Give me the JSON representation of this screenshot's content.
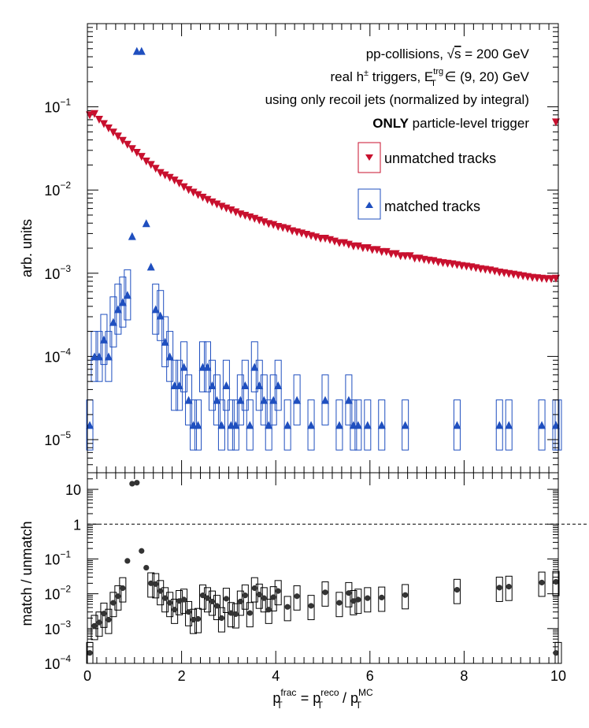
{
  "chart_data": [
    {
      "type": "scatter",
      "ylabel": "arb. units",
      "yscale": "log",
      "xlim": [
        0,
        10
      ],
      "ylim": [
        4e-06,
        1.0
      ],
      "y_ticks": [
        {
          "v": 1e-05,
          "base": "10",
          "exp": "−5"
        },
        {
          "v": 0.0001,
          "base": "10",
          "exp": "−4"
        },
        {
          "v": 0.001,
          "base": "10",
          "exp": "−3"
        },
        {
          "v": 0.01,
          "base": "10",
          "exp": "−2"
        },
        {
          "v": 0.1,
          "base": "10",
          "exp": "−1"
        }
      ],
      "annotations": {
        "line1": "pp-collisions,",
        "line1_b": " = 200 GeV",
        "sqrt_s": "s",
        "line2_a": "real h",
        "line2_sup": "±",
        "line2_b": " triggers, E",
        "line2_trg": "trg",
        "line2_T": "T",
        "line2_c": " ∈ (9, 20) GeV",
        "line3": "using only recoil jets (normalized by integral)",
        "line4_bold": "ONLY",
        "line4": " particle-level trigger"
      },
      "series": [
        {
          "name": "unmatched tracks",
          "color": "#c8102e",
          "marker": "triangle-down",
          "x": [
            0.05,
            0.15,
            0.25,
            0.35,
            0.45,
            0.55,
            0.65,
            0.75,
            0.85,
            0.95,
            1.05,
            1.15,
            1.25,
            1.35,
            1.45,
            1.55,
            1.65,
            1.75,
            1.85,
            1.95,
            2.05,
            2.15,
            2.25,
            2.35,
            2.45,
            2.55,
            2.65,
            2.75,
            2.85,
            2.95,
            3.05,
            3.15,
            3.25,
            3.35,
            3.45,
            3.55,
            3.65,
            3.75,
            3.85,
            3.95,
            4.05,
            4.15,
            4.25,
            4.35,
            4.45,
            4.55,
            4.65,
            4.75,
            4.85,
            4.95,
            5.05,
            5.15,
            5.25,
            5.35,
            5.45,
            5.55,
            5.65,
            5.75,
            5.85,
            5.95,
            6.05,
            6.15,
            6.25,
            6.35,
            6.45,
            6.55,
            6.65,
            6.75,
            6.85,
            6.95,
            7.05,
            7.15,
            7.25,
            7.35,
            7.45,
            7.55,
            7.65,
            7.75,
            7.85,
            7.95,
            8.05,
            8.15,
            8.25,
            8.35,
            8.45,
            8.55,
            8.65,
            8.75,
            8.85,
            8.95,
            9.05,
            9.15,
            9.25,
            9.35,
            9.45,
            9.55,
            9.65,
            9.75,
            9.85,
            9.95
          ],
          "values": [
            0.079,
            0.082,
            0.07,
            0.062,
            0.055,
            0.049,
            0.044,
            0.039,
            0.035,
            0.031,
            0.028,
            0.025,
            0.022,
            0.02,
            0.018,
            0.016,
            0.015,
            0.014,
            0.013,
            0.012,
            0.0108,
            0.01,
            0.0093,
            0.0087,
            0.0081,
            0.0076,
            0.0071,
            0.0067,
            0.0063,
            0.006,
            0.0057,
            0.0054,
            0.0051,
            0.0049,
            0.0047,
            0.0045,
            0.0043,
            0.0041,
            0.0039,
            0.0038,
            0.0036,
            0.0035,
            0.0034,
            0.0032,
            0.0031,
            0.003,
            0.0029,
            0.0028,
            0.0027,
            0.0026,
            0.0026,
            0.0025,
            0.0024,
            0.0023,
            0.0023,
            0.0022,
            0.0021,
            0.0021,
            0.002,
            0.002,
            0.0019,
            0.0019,
            0.0018,
            0.0018,
            0.0017,
            0.0017,
            0.0016,
            0.0016,
            0.0016,
            0.0015,
            0.0015,
            0.00145,
            0.00142,
            0.0014,
            0.00135,
            0.00132,
            0.0013,
            0.00128,
            0.00125,
            0.00122,
            0.0012,
            0.00118,
            0.00115,
            0.00112,
            0.0011,
            0.00108,
            0.00105,
            0.00102,
            0.001,
            0.00098,
            0.00096,
            0.00094,
            0.00092,
            0.0009,
            0.00088,
            0.00087,
            0.00086,
            0.00085,
            0.00085,
            0.00086
          ],
          "overflow_marker": {
            "x": 10,
            "y": 0.065
          }
        },
        {
          "name": "matched tracks",
          "color": "#1f4fbf",
          "marker": "triangle-up",
          "x": [
            0.05,
            0.15,
            0.25,
            0.35,
            0.45,
            0.55,
            0.65,
            0.75,
            0.85,
            0.95,
            1.05,
            1.15,
            1.25,
            1.35,
            1.45,
            1.55,
            1.65,
            1.75,
            1.85,
            1.95,
            2.05,
            2.15,
            2.25,
            2.35,
            2.45,
            2.55,
            2.65,
            2.75,
            2.85,
            2.95,
            3.05,
            3.15,
            3.25,
            3.35,
            3.45,
            3.55,
            3.65,
            3.75,
            3.85,
            3.95,
            4.05,
            4.25,
            4.45,
            4.75,
            5.05,
            5.35,
            5.55,
            5.65,
            5.75,
            5.95,
            6.25,
            6.75,
            7.85,
            8.75,
            8.95,
            9.65,
            9.95,
            10.0
          ],
          "values": [
            1.5e-05,
            0.0001,
            0.0001,
            0.00016,
            0.0001,
            0.00026,
            0.00037,
            0.00045,
            0.00055,
            0.0028,
            0.47,
            0.47,
            0.004,
            0.0012,
            0.00037,
            0.00031,
            0.00015,
            0.0001,
            4.5e-05,
            4.5e-05,
            7.5e-05,
            3e-05,
            1.5e-05,
            1.5e-05,
            7.5e-05,
            7.5e-05,
            4.5e-05,
            3e-05,
            1.5e-05,
            4.5e-05,
            1.5e-05,
            1.5e-05,
            3e-05,
            4.5e-05,
            1.5e-05,
            7.5e-05,
            4.5e-05,
            3e-05,
            1.5e-05,
            3e-05,
            4.5e-05,
            1.5e-05,
            3e-05,
            1.5e-05,
            3e-05,
            1.5e-05,
            3e-05,
            1.5e-05,
            1.5e-05,
            1.5e-05,
            1.5e-05,
            1.5e-05,
            1.5e-05,
            1.5e-05,
            1.5e-05,
            1.5e-05,
            1.5e-05,
            1.5e-05
          ]
        }
      ]
    },
    {
      "type": "scatter",
      "ylabel": "match / unmatch",
      "yscale": "log",
      "xlim": [
        0,
        10
      ],
      "ylim": [
        0.0001,
        30
      ],
      "reference_line": 1,
      "y_ticks": [
        {
          "v": 0.0001,
          "base": "10",
          "exp": "−4"
        },
        {
          "v": 0.001,
          "base": "10",
          "exp": "−3"
        },
        {
          "v": 0.01,
          "base": "10",
          "exp": "−2"
        },
        {
          "v": 0.1,
          "base": "10",
          "exp": "−1"
        },
        {
          "v": 1,
          "base": "1",
          "exp": ""
        },
        {
          "v": 10,
          "base": "10",
          "exp": ""
        }
      ],
      "x_ticks": [
        "0",
        "2",
        "4",
        "6",
        "8",
        "10"
      ],
      "xlabel": {
        "p": "p",
        "sup_frac": "frac",
        "sub_T": "T",
        "eq": " = p",
        "sup_reco": "reco",
        "slash": " / p",
        "sup_mc": "MC"
      },
      "series": [
        {
          "name": "",
          "color": "#333333",
          "marker": "circle",
          "x": [
            0.05,
            0.15,
            0.25,
            0.35,
            0.45,
            0.55,
            0.65,
            0.75,
            0.85,
            0.95,
            1.05,
            1.15,
            1.25,
            1.35,
            1.45,
            1.55,
            1.65,
            1.75,
            1.85,
            1.95,
            2.05,
            2.15,
            2.25,
            2.35,
            2.45,
            2.55,
            2.65,
            2.75,
            2.85,
            2.95,
            3.05,
            3.15,
            3.25,
            3.35,
            3.45,
            3.55,
            3.65,
            3.75,
            3.85,
            3.95,
            4.05,
            4.25,
            4.45,
            4.75,
            5.05,
            5.35,
            5.55,
            5.65,
            5.75,
            5.95,
            6.25,
            6.75,
            7.85,
            8.75,
            8.95,
            9.65,
            9.95,
            10.0
          ],
          "values": [
            0.0002,
            0.0012,
            0.0015,
            0.0027,
            0.0018,
            0.0055,
            0.0085,
            0.0145,
            0.088,
            14.5,
            15.5,
            0.17,
            0.056,
            0.02,
            0.019,
            0.012,
            0.0075,
            0.0055,
            0.0035,
            0.0062,
            0.0068,
            0.003,
            0.0018,
            0.0019,
            0.009,
            0.0075,
            0.006,
            0.0045,
            0.002,
            0.0072,
            0.0028,
            0.0026,
            0.006,
            0.009,
            0.0028,
            0.0145,
            0.0095,
            0.0075,
            0.0035,
            0.008,
            0.012,
            0.0042,
            0.0085,
            0.0045,
            0.011,
            0.0055,
            0.0105,
            0.0062,
            0.0068,
            0.0075,
            0.0078,
            0.0092,
            0.013,
            0.015,
            0.016,
            0.021,
            0.022,
            0.0002
          ]
        }
      ]
    }
  ]
}
